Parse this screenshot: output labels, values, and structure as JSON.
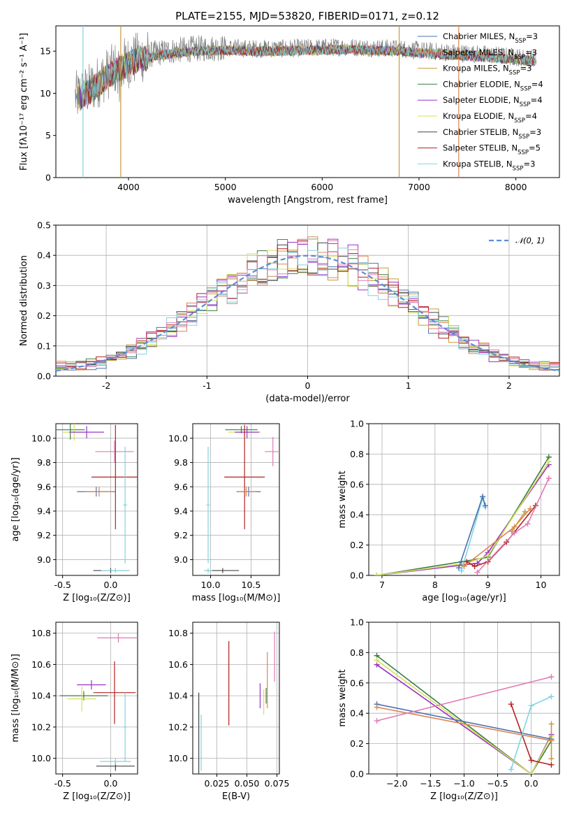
{
  "figure": {
    "title": "PLATE=2155, MJD=53820, FIBERID=0171, z=0.12"
  },
  "chart_data": [
    {
      "type": "line",
      "panel": "spectrum",
      "xlabel": "wavelength [Angstrom, rest frame]",
      "ylabel": "Flux [fλ10⁻¹⁷ erg cm⁻² s⁻¹ A⁻¹]",
      "xlim": [
        3250,
        8450
      ],
      "ylim": [
        0,
        18
      ],
      "xticks": [
        4000,
        5000,
        6000,
        7000,
        8000
      ],
      "yticks": [
        0,
        5,
        10,
        15
      ],
      "legend_position": "right",
      "continuum_x": [
        3450,
        3600,
        3800,
        3950,
        4100,
        4300,
        4500,
        4700,
        5000,
        5300,
        5600,
        5900,
        6200,
        6500,
        6800,
        7100,
        7400,
        7700,
        8000,
        8200
      ],
      "continuum_y": [
        9.5,
        10.5,
        12.5,
        13.5,
        14.2,
        14.8,
        15.1,
        15.3,
        15.4,
        15.3,
        15.3,
        15.4,
        15.5,
        15.4,
        15.3,
        15.0,
        14.8,
        14.6,
        14.3,
        14.1
      ],
      "observed_spikes_x": [
        3530,
        3920,
        6795,
        7410
      ],
      "series": [
        {
          "name": "Chabrier MILES, N_SSP=3",
          "color": "#4c72b0"
        },
        {
          "name": "Salpeter MILES, N_SSP=3",
          "color": "#dd8452"
        },
        {
          "name": "Kroupa MILES, N_SSP=3",
          "color": "#c49a3c"
        },
        {
          "name": "Chabrier ELODIE, N_SSP=4",
          "color": "#3a7d44"
        },
        {
          "name": "Salpeter ELODIE, N_SSP=4",
          "color": "#9b30c8"
        },
        {
          "name": "Kroupa ELODIE, N_SSP=4",
          "color": "#d6e05a"
        },
        {
          "name": "Chabrier STELIB, N_SSP=3",
          "color": "#444444"
        },
        {
          "name": "Salpeter STELIB, N_SSP=5",
          "color": "#b22222"
        },
        {
          "name": "Kroupa STELIB, N_SSP=3",
          "color": "#7fd4e0"
        }
      ]
    },
    {
      "type": "line",
      "panel": "residual_histogram",
      "xlabel": "(data-model)/error",
      "ylabel": "Normed distribution",
      "xlim": [
        -2.5,
        2.5
      ],
      "ylim": [
        0,
        0.5
      ],
      "xticks": [
        -2,
        -1,
        0,
        1,
        2
      ],
      "yticks": [
        0.0,
        0.1,
        0.2,
        0.3,
        0.4,
        0.5
      ],
      "legend": "𝒩(0, 1)",
      "legend_position": "top-right",
      "bin_width": 0.1,
      "curve": "normal(0,1)",
      "curve_color": "#5b8dd6"
    },
    {
      "type": "scatter",
      "panel": "age_vs_Z",
      "xlabel": "Z [log₁₀(Z/Z⊙)]",
      "ylabel": "age  [log₁₀(age/yr)]",
      "xlim": [
        -0.57,
        0.28
      ],
      "ylim": [
        8.87,
        10.12
      ],
      "xticks": [
        -0.5,
        0.0
      ],
      "yticks": [
        9.0,
        9.2,
        9.4,
        9.6,
        9.8,
        10.0
      ],
      "points": [
        {
          "x": -0.42,
          "y": 10.07,
          "xerr": 0.15,
          "yerr": 0.08,
          "color": "#3a7d44"
        },
        {
          "x": -0.38,
          "y": 10.05,
          "xerr": 0.12,
          "yerr": 0.07,
          "color": "#d6e05a"
        },
        {
          "x": -0.25,
          "y": 10.05,
          "xerr": 0.18,
          "yerr": 0.05,
          "color": "#9b30c8"
        },
        {
          "x": 0.04,
          "y": 9.89,
          "xerr": 0.2,
          "yerr": 0.09,
          "color": "#e07bb5"
        },
        {
          "x": 0.05,
          "y": 9.68,
          "xerr": 0.25,
          "yerr": 0.43,
          "color": "#b22222"
        },
        {
          "x": -0.15,
          "y": 9.56,
          "xerr": 0.2,
          "yerr": 0.04,
          "color": "#4c72b0"
        },
        {
          "x": -0.12,
          "y": 9.56,
          "xerr": 0.15,
          "yerr": 0.04,
          "color": "#dd8452"
        },
        {
          "x": 0.15,
          "y": 9.45,
          "xerr": 0.02,
          "yerr": 0.48,
          "color": "#7fd4e0"
        },
        {
          "x": 0.0,
          "y": 8.91,
          "xerr": 0.18,
          "yerr": 0.02,
          "color": "#444444"
        },
        {
          "x": 0.05,
          "y": 8.91,
          "xerr": 0.15,
          "yerr": 0.02,
          "color": "#7fd4e0"
        }
      ]
    },
    {
      "type": "scatter",
      "panel": "age_vs_mass",
      "xlabel": "mass [log₁₀(M/M⊙)]",
      "ylabel": "",
      "xlim": [
        9.78,
        10.85
      ],
      "ylim": [
        8.87,
        10.12
      ],
      "xticks": [
        10.0,
        10.5
      ],
      "yticks": [
        9.0,
        9.2,
        9.4,
        9.6,
        9.8,
        10.0
      ],
      "points": [
        {
          "x": 10.38,
          "y": 10.07,
          "xerr": 0.2,
          "yerr": 0.03,
          "color": "#3a7d44"
        },
        {
          "x": 10.42,
          "y": 10.05,
          "xerr": 0.2,
          "yerr": 0.03,
          "color": "#d6e05a"
        },
        {
          "x": 10.45,
          "y": 10.05,
          "xerr": 0.15,
          "yerr": 0.05,
          "color": "#9b30c8"
        },
        {
          "x": 10.77,
          "y": 9.89,
          "xerr": 0.1,
          "yerr": 0.12,
          "color": "#e07bb5"
        },
        {
          "x": 10.42,
          "y": 9.68,
          "xerr": 0.25,
          "yerr": 0.43,
          "color": "#b22222"
        },
        {
          "x": 10.47,
          "y": 9.56,
          "xerr": 0.15,
          "yerr": 0.04,
          "color": "#4c72b0"
        },
        {
          "x": 10.44,
          "y": 9.56,
          "xerr": 0.12,
          "yerr": 0.04,
          "color": "#dd8452"
        },
        {
          "x": 9.97,
          "y": 9.45,
          "xerr": 0.02,
          "yerr": 0.48,
          "color": "#7fd4e0"
        },
        {
          "x": 10.15,
          "y": 8.91,
          "xerr": 0.2,
          "yerr": 0.02,
          "color": "#444444"
        },
        {
          "x": 9.97,
          "y": 8.91,
          "xerr": 0.05,
          "yerr": 0.02,
          "color": "#7fd4e0"
        }
      ]
    },
    {
      "type": "line",
      "panel": "massweight_vs_age",
      "xlabel": "age  [log₁₀(age/yr)]",
      "ylabel": "mass weight",
      "xlim": [
        6.75,
        10.35
      ],
      "ylim": [
        0,
        1.0
      ],
      "xticks": [
        7,
        8,
        9,
        10
      ],
      "yticks": [
        0.0,
        0.2,
        0.4,
        0.6,
        0.8,
        1.0
      ],
      "series": [
        {
          "color": "#9b30c8",
          "x": [
            6.9,
            8.8,
            9.0,
            10.15
          ],
          "y": [
            0.0,
            0.08,
            0.15,
            0.73
          ]
        },
        {
          "color": "#3a7d44",
          "x": [
            6.9,
            8.5,
            9.0,
            10.15
          ],
          "y": [
            0.0,
            0.09,
            0.12,
            0.78
          ]
        },
        {
          "color": "#d6e05a",
          "x": [
            6.9,
            8.6,
            9.0,
            10.15
          ],
          "y": [
            0.0,
            0.08,
            0.13,
            0.75
          ]
        },
        {
          "color": "#7fd4e0",
          "x": [
            8.5,
            8.9,
            8.95
          ],
          "y": [
            0.03,
            0.51,
            0.45
          ]
        },
        {
          "color": "#4c72b0",
          "x": [
            8.45,
            8.9,
            8.95
          ],
          "y": [
            0.05,
            0.52,
            0.46
          ]
        },
        {
          "color": "#b22222",
          "x": [
            8.6,
            8.75,
            9.0,
            9.35,
            9.9
          ],
          "y": [
            0.09,
            0.06,
            0.09,
            0.22,
            0.46
          ]
        },
        {
          "color": "#dd8452",
          "x": [
            8.55,
            9.5,
            9.8
          ],
          "y": [
            0.06,
            0.32,
            0.44
          ]
        },
        {
          "color": "#e07bb5",
          "x": [
            8.8,
            9.5,
            9.75,
            10.15
          ],
          "y": [
            0.02,
            0.28,
            0.34,
            0.64
          ]
        },
        {
          "color": "#c49a3c",
          "x": [
            9.45,
            9.7
          ],
          "y": [
            0.29,
            0.42
          ]
        }
      ]
    },
    {
      "type": "scatter",
      "panel": "mass_vs_Z",
      "xlabel": "Z [log₁₀(Z/Z⊙)]",
      "ylabel": "mass [log₁₀(M/M⊙)]",
      "xlim": [
        -0.57,
        0.28
      ],
      "ylim": [
        9.9,
        10.87
      ],
      "xticks": [
        -0.5,
        0.0
      ],
      "yticks": [
        10.0,
        10.2,
        10.4,
        10.6,
        10.8
      ],
      "points": [
        {
          "x": 0.08,
          "y": 10.77,
          "xerr": 0.22,
          "yerr": 0.03,
          "color": "#e07bb5"
        },
        {
          "x": -0.2,
          "y": 10.47,
          "xerr": 0.15,
          "yerr": 0.03,
          "color": "#9b30c8"
        },
        {
          "x": 0.04,
          "y": 10.42,
          "xerr": 0.22,
          "yerr": 0.2,
          "color": "#b22222"
        },
        {
          "x": -0.28,
          "y": 10.4,
          "xerr": 0.25,
          "yerr": 0.03,
          "color": "#3a7d44"
        },
        {
          "x": -0.3,
          "y": 10.38,
          "xerr": 0.15,
          "yerr": 0.08,
          "color": "#d6e05a"
        },
        {
          "x": 0.15,
          "y": 10.2,
          "xerr": 0.02,
          "yerr": 0.22,
          "color": "#7fd4e0"
        },
        {
          "x": 0.05,
          "y": 9.95,
          "xerr": 0.2,
          "yerr": 0.03,
          "color": "#444444"
        },
        {
          "x": 0.05,
          "y": 9.98,
          "xerr": 0.16,
          "yerr": 0.02,
          "color": "#7fd4e0"
        }
      ]
    },
    {
      "type": "scatter",
      "panel": "mass_vs_EBV",
      "xlabel": "E(B-V)",
      "ylabel": "",
      "xlim": [
        0.005,
        0.077
      ],
      "ylim": [
        9.9,
        10.87
      ],
      "xticks": [
        0.025,
        0.05,
        0.075
      ],
      "yticks": [
        10.0,
        10.2,
        10.4,
        10.6,
        10.8
      ],
      "points": [
        {
          "x": 0.01,
          "y": 10.15,
          "yerr": 0.27,
          "color": "#444444"
        },
        {
          "x": 0.012,
          "y": 10.1,
          "yerr": 0.18,
          "color": "#7fd4e0"
        },
        {
          "x": 0.035,
          "y": 10.48,
          "yerr": 0.27,
          "color": "#b22222"
        },
        {
          "x": 0.061,
          "y": 10.4,
          "yerr": 0.08,
          "color": "#9b30c8"
        },
        {
          "x": 0.064,
          "y": 10.36,
          "yerr": 0.08,
          "color": "#d6e05a"
        },
        {
          "x": 0.066,
          "y": 10.4,
          "yerr": 0.05,
          "color": "#3a7d44"
        },
        {
          "x": 0.067,
          "y": 10.5,
          "yerr": 0.18,
          "color": "#dd8452"
        },
        {
          "x": 0.073,
          "y": 10.65,
          "yerr": 0.16,
          "color": "#e07bb5"
        }
      ]
    },
    {
      "type": "line",
      "panel": "massweight_vs_Z",
      "xlabel": "Z [log₁₀(Z/Z⊙)]",
      "ylabel": "mass weight",
      "xlim": [
        -2.42,
        0.42
      ],
      "ylim": [
        0,
        1.0
      ],
      "xticks": [
        -2.0,
        -1.5,
        -1.0,
        -0.5,
        0.0
      ],
      "yticks": [
        0.0,
        0.2,
        0.4,
        0.6,
        0.8,
        1.0
      ],
      "series": [
        {
          "color": "#3a7d44",
          "x": [
            -2.3,
            0.0,
            0.3
          ],
          "y": [
            0.78,
            0.0,
            0.22
          ]
        },
        {
          "color": "#9b30c8",
          "x": [
            -2.3,
            0.0,
            0.3
          ],
          "y": [
            0.72,
            0.0,
            0.26
          ]
        },
        {
          "color": "#d6e05a",
          "x": [
            -2.3,
            0.0,
            0.3
          ],
          "y": [
            0.75,
            0.0,
            0.25
          ]
        },
        {
          "color": "#4c72b0",
          "x": [
            -2.3,
            0.3
          ],
          "y": [
            0.46,
            0.23
          ]
        },
        {
          "color": "#dd8452",
          "x": [
            -2.3,
            0.3
          ],
          "y": [
            0.44,
            0.22
          ]
        },
        {
          "color": "#e07bb5",
          "x": [
            -2.3,
            0.3
          ],
          "y": [
            0.35,
            0.64
          ]
        },
        {
          "color": "#b22222",
          "x": [
            -0.3,
            0.0,
            0.3
          ],
          "y": [
            0.46,
            0.09,
            0.06
          ]
        },
        {
          "color": "#7fd4e0",
          "x": [
            -0.3,
            0.0,
            0.3
          ],
          "y": [
            0.03,
            0.45,
            0.51
          ]
        },
        {
          "color": "#c49a3c",
          "x": [
            0.3,
            0.3
          ],
          "y": [
            0.1,
            0.33
          ]
        }
      ]
    }
  ]
}
